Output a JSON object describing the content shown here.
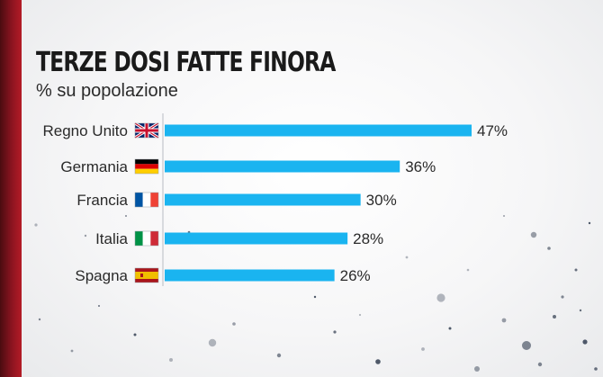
{
  "title": "TERZE DOSI FATTE FINORA",
  "subtitle": "% su popolazione",
  "colors": {
    "bar": "#1ab4f0",
    "accent_stripe": "#9b1722",
    "text": "#1a1a1a"
  },
  "chart_data": {
    "type": "bar",
    "orientation": "horizontal",
    "title": "TERZE DOSI FATTE FINORA",
    "subtitle": "% su popolazione",
    "categories": [
      "Regno Unito",
      "Germania",
      "Francia",
      "Italia",
      "Spagna"
    ],
    "values": [
      47,
      36,
      30,
      28,
      26
    ],
    "value_labels": [
      "47%",
      "36%",
      "30%",
      "28%",
      "26%"
    ],
    "flags": [
      "uk-flag-icon",
      "germany-flag-icon",
      "france-flag-icon",
      "italy-flag-icon",
      "spain-flag-icon"
    ],
    "grid": false,
    "legend": "none"
  }
}
